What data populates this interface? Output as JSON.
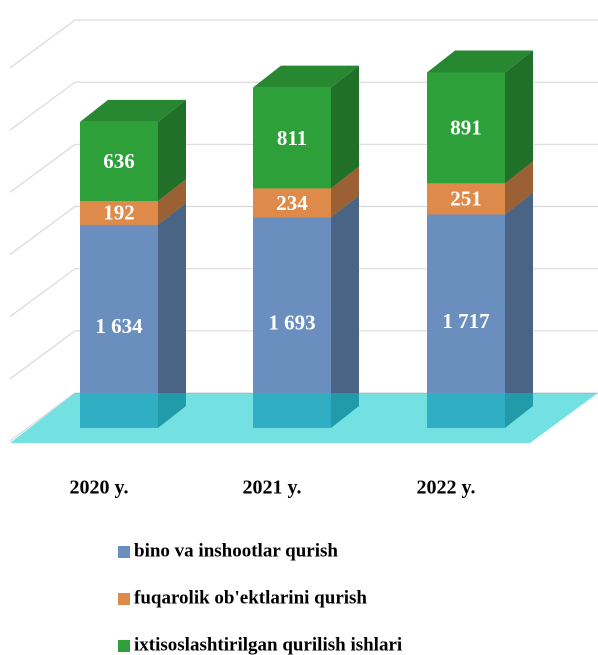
{
  "chart_data": {
    "type": "bar3d_stacked",
    "categories": [
      "2020 y.",
      "2021 y.",
      "2022 y."
    ],
    "series": [
      {
        "name": "bino va inshootlar qurish",
        "color": "#6a8fbf",
        "values": [
          1634,
          1693,
          1717
        ],
        "value_labels": [
          "1 634",
          "1 693",
          "1 717"
        ]
      },
      {
        "name": "fuqarolik ob'ektlarini qurish",
        "color": "#dd8a4a",
        "values": [
          192,
          234,
          251
        ]
      },
      {
        "name": "ixtisoslashtirilgan qurilish ishlari",
        "color": "#2ea03a",
        "values": [
          636,
          811,
          891
        ]
      }
    ],
    "ylim": [
      0,
      3000
    ],
    "yticks": [
      0,
      500,
      1000,
      1500,
      2000,
      2500,
      3000
    ],
    "grid": true,
    "floor_color": "#00c8c8"
  }
}
